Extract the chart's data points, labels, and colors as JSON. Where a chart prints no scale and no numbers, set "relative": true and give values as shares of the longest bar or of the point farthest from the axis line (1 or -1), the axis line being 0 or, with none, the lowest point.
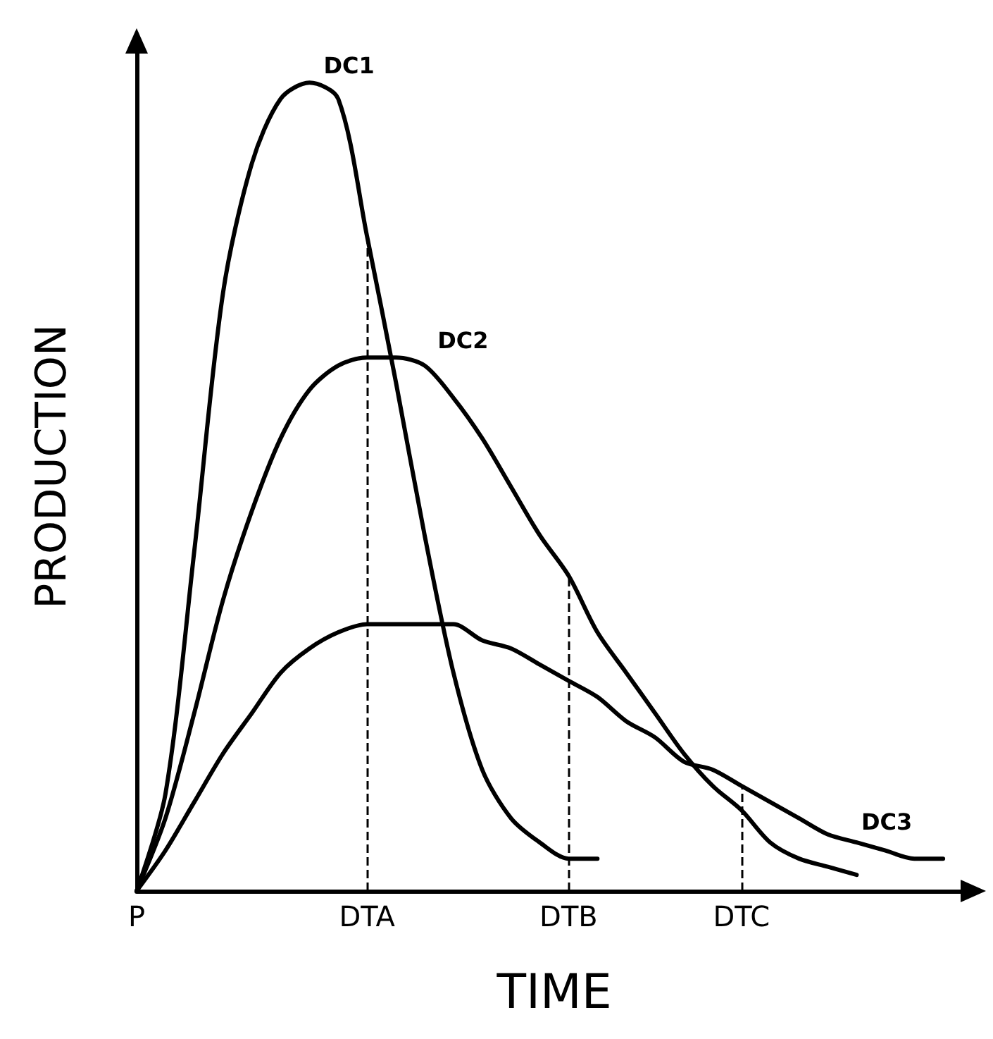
{
  "chart_data": {
    "type": "line",
    "relative": true,
    "xlabel": "TIME",
    "ylabel": "PRODUCTION",
    "line_style": "solid",
    "marker": "none",
    "grid": false,
    "legend": false,
    "categories": [
      "P",
      null,
      null,
      null,
      null,
      null,
      null,
      null,
      "DTA",
      null,
      null,
      null,
      null,
      null,
      null,
      "DTB",
      null,
      null,
      null,
      null,
      null,
      "DTC",
      null,
      null,
      null,
      null,
      null,
      null,
      null,
      null
    ],
    "series": [
      {
        "name": "DC1",
        "color": "#000000",
        "values": [
          0,
          0.12,
          0.42,
          0.74,
          0.9,
          0.98,
          1.0,
          0.98,
          0.81,
          0.63,
          0.44,
          0.27,
          0.15,
          0.09,
          0.06,
          0.04,
          0.04,
          null,
          null,
          null,
          null,
          null,
          null,
          null,
          null,
          null,
          null,
          null,
          null,
          null
        ]
      },
      {
        "name": "DC2",
        "color": "#000000",
        "values": [
          0,
          0.09,
          0.22,
          0.36,
          0.47,
          0.56,
          0.62,
          0.65,
          0.66,
          0.66,
          0.65,
          0.61,
          0.56,
          0.5,
          0.44,
          0.39,
          0.32,
          0.27,
          0.22,
          0.17,
          0.13,
          0.1,
          0.06,
          0.04,
          0.03,
          0.02,
          null,
          null,
          null,
          null
        ]
      },
      {
        "name": "DC3",
        "color": "#000000",
        "values": [
          0,
          0.05,
          0.11,
          0.17,
          0.22,
          0.27,
          0.3,
          0.32,
          0.33,
          0.33,
          0.33,
          0.33,
          0.31,
          0.3,
          0.28,
          0.26,
          0.24,
          0.21,
          0.19,
          0.16,
          0.15,
          0.13,
          0.11,
          0.09,
          0.07,
          0.06,
          0.05,
          0.04,
          0.04,
          null
        ]
      }
    ],
    "ref_lines": [
      {
        "axis": "x",
        "value": "DTA",
        "line_style": "dashed"
      },
      {
        "axis": "x",
        "value": "DTB",
        "line_style": "dashed"
      },
      {
        "axis": "x",
        "value": "DTC",
        "line_style": "dashed"
      }
    ]
  }
}
